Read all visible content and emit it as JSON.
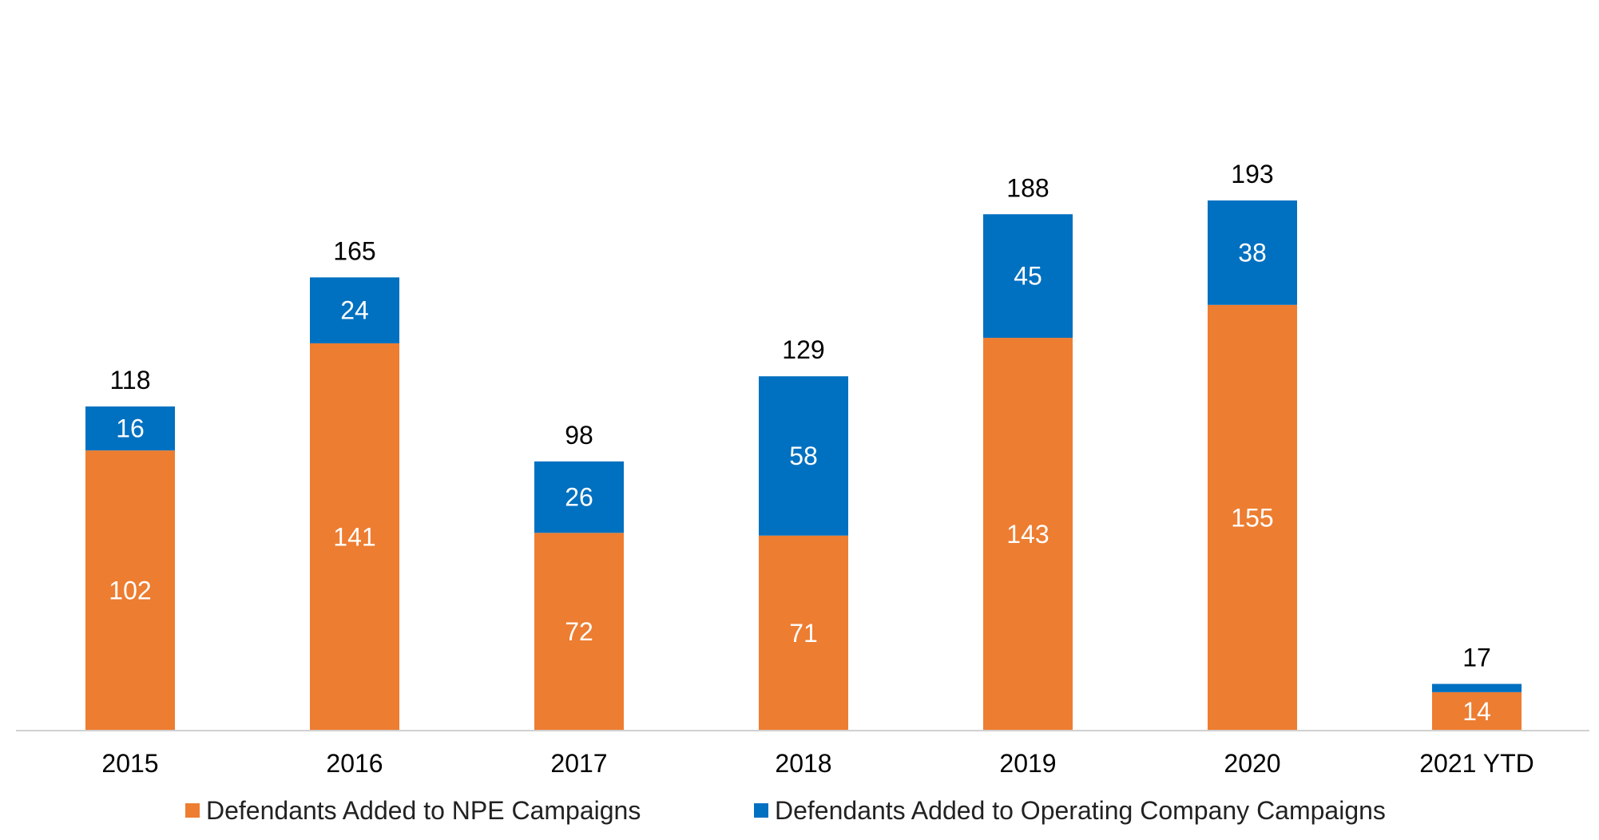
{
  "chart_data": {
    "type": "bar",
    "stacked": true,
    "title": "",
    "xlabel": "",
    "ylabel": "",
    "ylim": [
      0,
      200
    ],
    "grid": false,
    "legend_position": "bottom",
    "categories": [
      "2015",
      "2016",
      "2017",
      "2018",
      "2019",
      "2020",
      "2021 YTD"
    ],
    "series": [
      {
        "name": "Defendants Added to NPE Campaigns",
        "color": "#ED7D31",
        "values": [
          102,
          141,
          72,
          71,
          143,
          155,
          14
        ]
      },
      {
        "name": "Defendants Added to Operating Company Campaigns",
        "color": "#0070C0",
        "values": [
          16,
          24,
          26,
          58,
          45,
          38,
          3
        ]
      }
    ],
    "totals": [
      118,
      165,
      98,
      129,
      188,
      193,
      17
    ],
    "series_labels_shown": [
      [
        "102",
        "141",
        "72",
        "71",
        "143",
        "155",
        "14"
      ],
      [
        "16",
        "24",
        "26",
        "58",
        "45",
        "38",
        ""
      ]
    ],
    "total_labels": [
      "118",
      "165",
      "98",
      "129",
      "188",
      "193",
      "17"
    ]
  }
}
